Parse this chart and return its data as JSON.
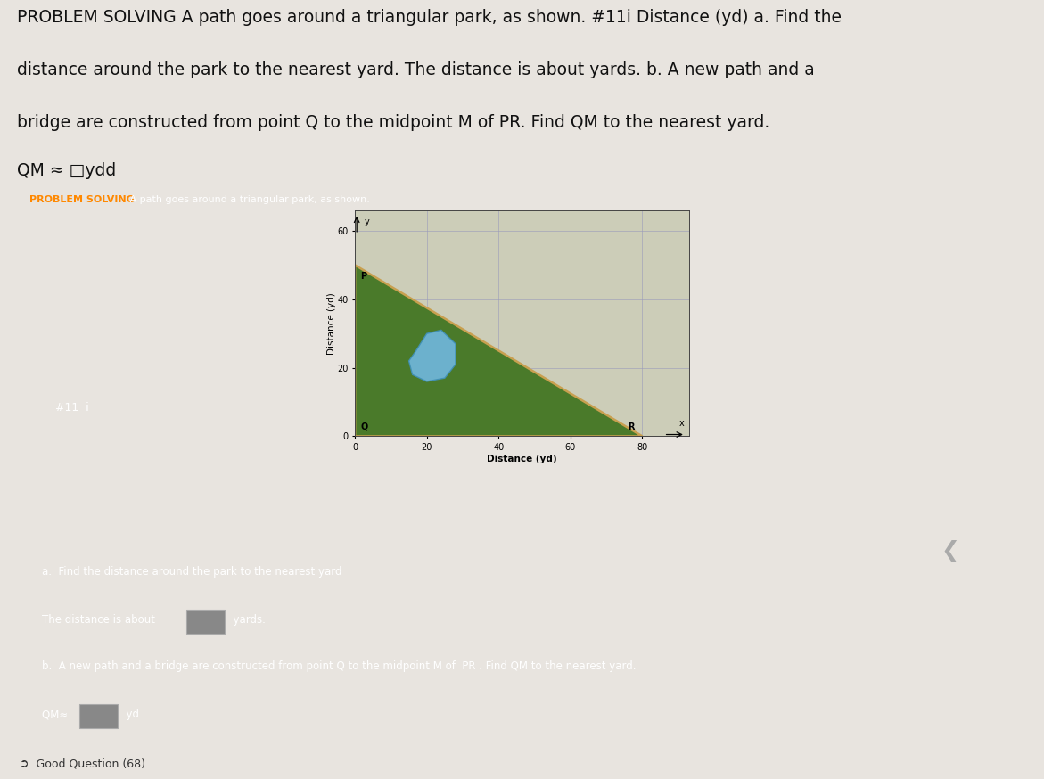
{
  "page_bg": "#e8e4df",
  "card_bg": "#454545",
  "card_fg": "#ffffff",
  "card_title_accent": "#ff8800",
  "plot_bg": "#cccdb8",
  "grid_color": "#9999bb",
  "triangle_fill": "#4a7a2a",
  "triangle_edge": "#c8a050",
  "pond_fill": "#70b8e0",
  "pond_edge": "#4090b8",
  "Q": [
    0,
    0
  ],
  "P": [
    0,
    50
  ],
  "R": [
    80,
    0
  ],
  "pond_x": [
    17,
    20,
    24,
    28,
    28,
    25,
    20,
    16,
    15,
    17
  ],
  "pond_y": [
    25,
    30,
    31,
    27,
    21,
    17,
    16,
    18,
    22,
    25
  ],
  "xlabel": "Distance (yd)",
  "ylabel": "Distance (yd)",
  "xlim_min": 0,
  "xlim_max": 93,
  "ylim_min": 0,
  "ylim_max": 66,
  "xticks": [
    0,
    20,
    40,
    60,
    80
  ],
  "yticks": [
    0,
    20,
    40,
    60
  ],
  "label_Q": "Q",
  "label_P": "P",
  "label_R": "R",
  "label_x": "x",
  "label_y": "y",
  "top_line1": "PROBLEM SOLVING A path goes around a triangular park, as shown. #11i Distance (yd) a. Find the",
  "top_line2": "distance around the park to the nearest yard. The distance is about yards. b. A new path and a",
  "top_line3": "bridge are constructed from point Q to the midpoint M of PR. Find QM to the nearest yard.",
  "top_line4": "QM ≈ □ydd",
  "card_header_bold": "PROBLEM SOLVING",
  "card_header_rest": " A path goes around a triangular park, as shown.",
  "hashtag": "#11  i",
  "section_a": "a.  Find the distance around the park to the nearest yard",
  "distance_prefix": "The distance is about",
  "distance_suffix": "yards.",
  "section_b": "b.  A new path and a bridge are constructed from point Q to the midpoint M of  PR . Find QM to the nearest yard.",
  "qm_prefix": "QM≈",
  "qm_suffix": "yd",
  "good_question": "Good Question (68)",
  "bottom_bar_bg": "#1a1a1a",
  "bottom_bar_fg": "#cccccc",
  "right_chevron": "❮",
  "top_fontsize": 13.5,
  "card_header_fontsize": 8,
  "section_fontsize": 8.5,
  "hashtag_fontsize": 9,
  "plot_label_fontsize": 7.5,
  "plot_tick_fontsize": 7,
  "point_label_fontsize": 7
}
